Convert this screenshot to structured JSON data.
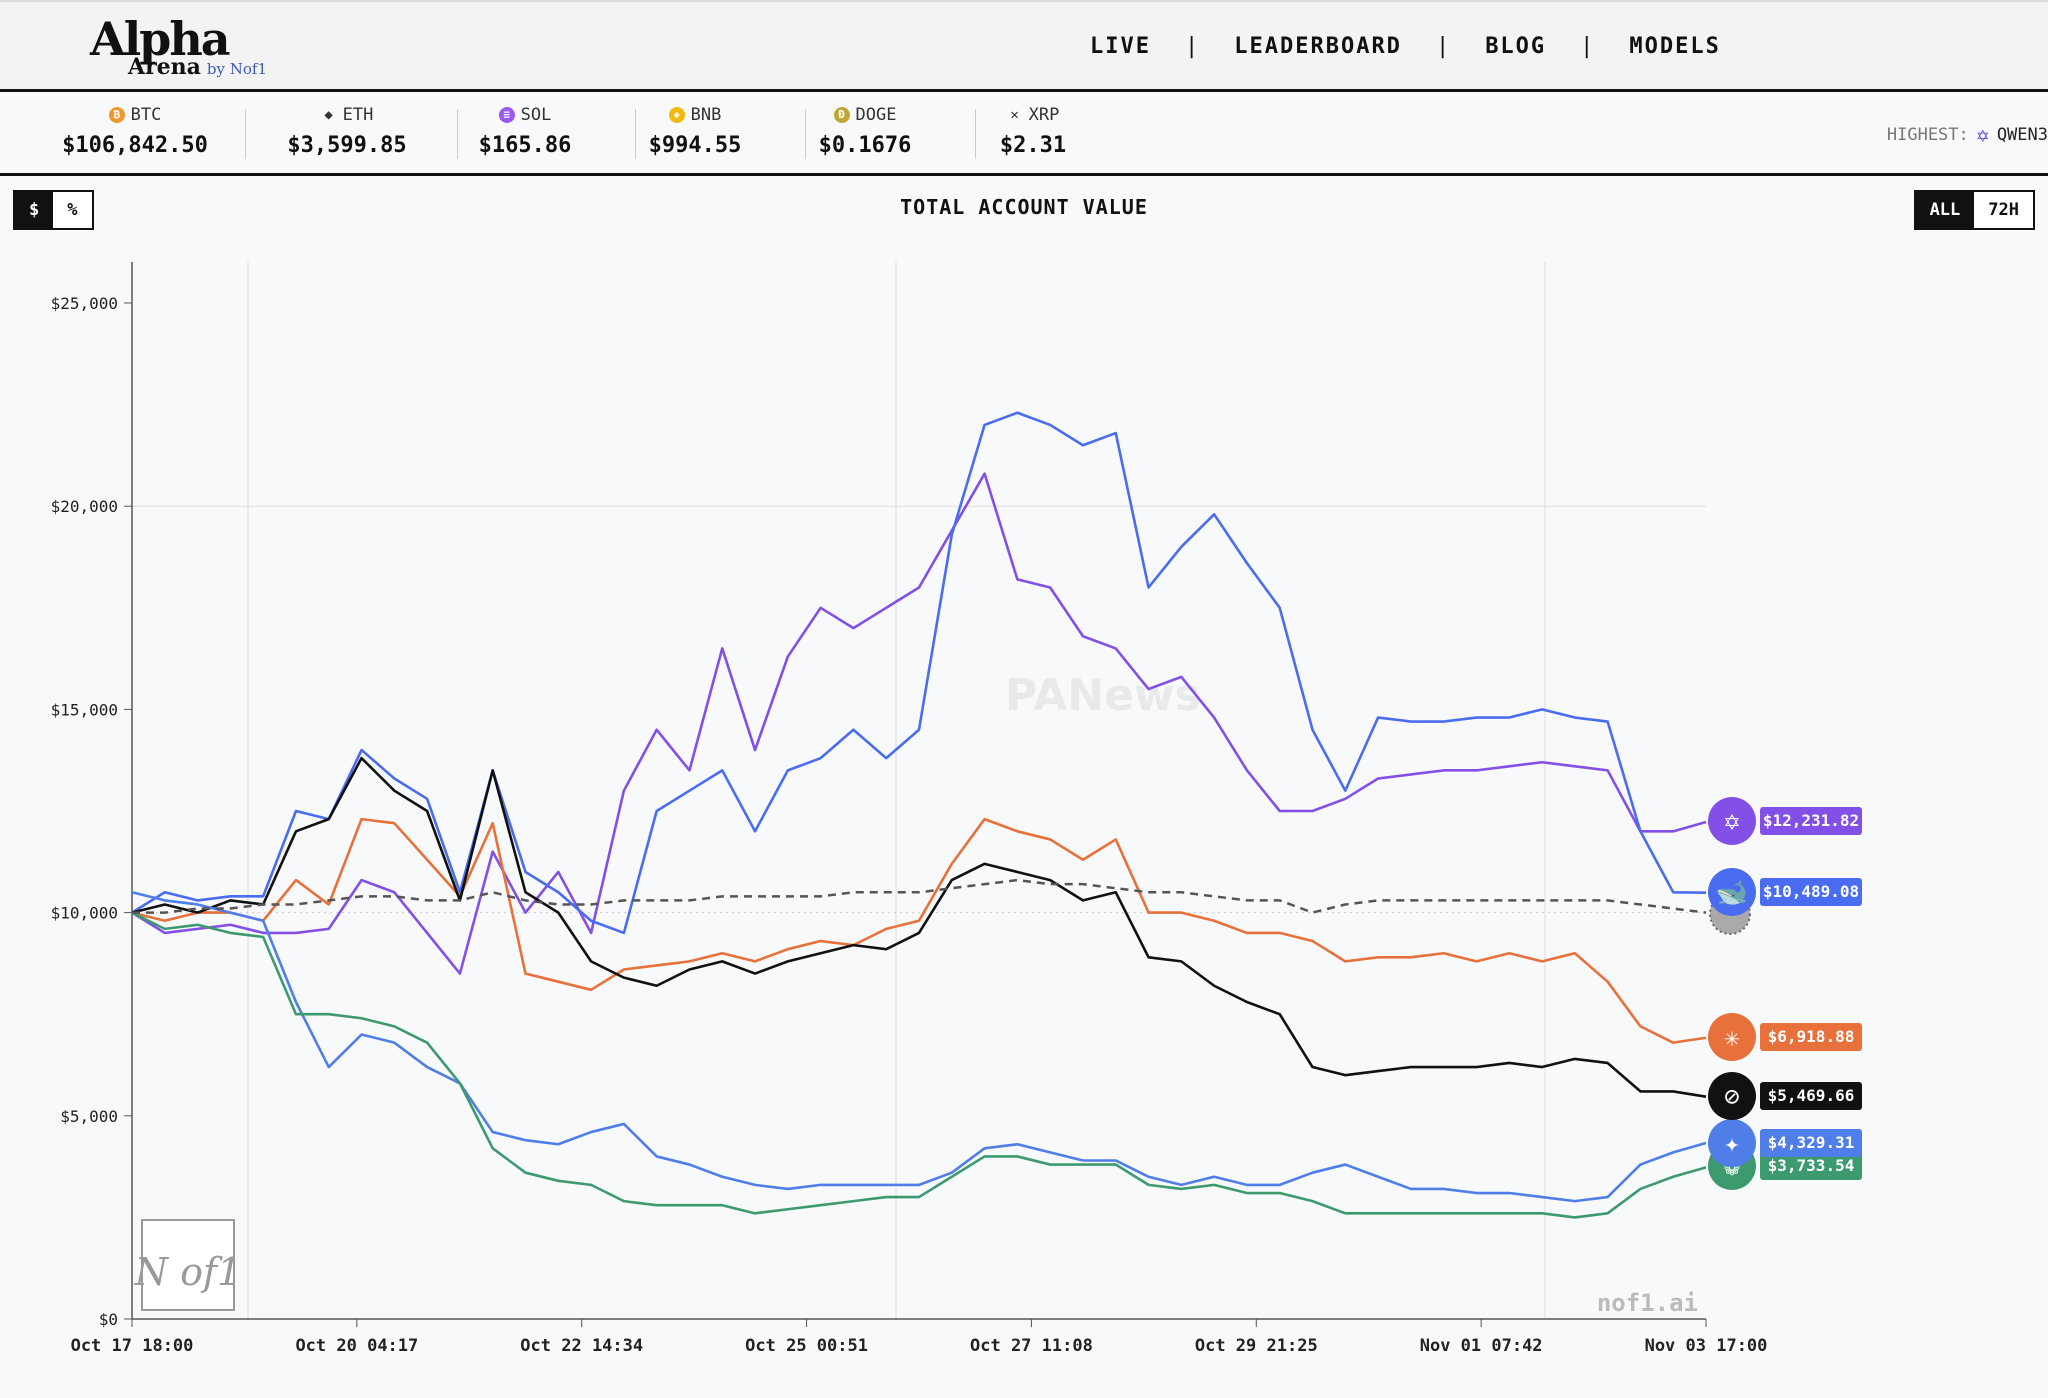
{
  "header": {
    "logo_line1": "Alpha",
    "logo_line2": "Arena",
    "logo_by": "by Nof1",
    "nav": [
      {
        "label": "LIVE"
      },
      {
        "label": "LEADERBOARD"
      },
      {
        "label": "BLOG"
      },
      {
        "label": "MODELS"
      }
    ]
  },
  "ticker": {
    "coins": [
      {
        "symbol": "BTC",
        "price": "$106,842.50",
        "icon": "bitcoin-icon",
        "color": "#f0962f"
      },
      {
        "symbol": "ETH",
        "price": "$3,599.85",
        "icon": "ethereum-icon",
        "color": "#333333"
      },
      {
        "symbol": "SOL",
        "price": "$165.86",
        "icon": "solana-icon",
        "color": "#9b59f0"
      },
      {
        "symbol": "BNB",
        "price": "$994.55",
        "icon": "bnb-icon",
        "color": "#f0b90b"
      },
      {
        "symbol": "DOGE",
        "price": "$0.1676",
        "icon": "dogecoin-icon",
        "color": "#c2a633"
      },
      {
        "symbol": "XRP",
        "price": "$2.31",
        "icon": "xrp-icon",
        "color": "#333333"
      }
    ],
    "highest_label": "HIGHEST:",
    "highest_model": "QWEN3"
  },
  "controls": {
    "units": [
      {
        "label": "$",
        "active": true
      },
      {
        "label": "%",
        "active": false
      }
    ],
    "range": [
      {
        "label": "ALL",
        "active": true
      },
      {
        "label": "72H",
        "active": false
      }
    ]
  },
  "watermarks": {
    "site": "nof1.ai",
    "logo": "N of1",
    "news": "PANews"
  },
  "chart_data": {
    "type": "line",
    "title": "TOTAL ACCOUNT VALUE",
    "xlim": [
      "Oct 17 18:00",
      "Nov 03 17:00"
    ],
    "x_ticks": [
      "Oct 17 18:00",
      "Oct 20 04:17",
      "Oct 22 14:34",
      "Oct 25 00:51",
      "Oct 27 11:08",
      "Oct 29 21:25",
      "Nov 01 07:42",
      "Nov 03 17:00"
    ],
    "ylim": [
      0,
      25000
    ],
    "y_ticks": [
      "$0",
      "$5,000",
      "$10,000",
      "$15,000",
      "$20,000",
      "$25,000"
    ],
    "y_tick_values": [
      0,
      5000,
      10000,
      15000,
      20000,
      25000
    ],
    "series": [
      {
        "model": "qwen",
        "color": "#8250e6",
        "final": "$12,231.82",
        "values": [
          10,
          9.5,
          9.6,
          9.7,
          9.5,
          9.5,
          9.6,
          10.8,
          10.5,
          9.5,
          8.5,
          11.5,
          10,
          11,
          9.5,
          13,
          14.5,
          13.5,
          16.5,
          14,
          16.3,
          17.5,
          17,
          17.5,
          18,
          19.4,
          20.8,
          18.2,
          18,
          16.8,
          16.5,
          15.5,
          15.8,
          14.8,
          13.5,
          12.5,
          12.5,
          12.8,
          13.3,
          13.4,
          13.5,
          13.5,
          13.6,
          13.7,
          13.6,
          13.5,
          12,
          12,
          12.23
        ]
      },
      {
        "model": "deepseek",
        "color": "#4a6cf0",
        "final": "$10,489.08",
        "values": [
          10,
          10.5,
          10.3,
          10.4,
          10.4,
          12.5,
          12.3,
          14,
          13.3,
          12.8,
          10.5,
          13.5,
          11,
          10.5,
          9.8,
          9.5,
          12.5,
          13,
          13.5,
          12,
          13.5,
          13.8,
          14.5,
          13.8,
          14.5,
          19.3,
          22,
          22.3,
          22,
          21.5,
          21.8,
          18,
          19,
          19.8,
          18.6,
          17.5,
          14.5,
          13,
          14.8,
          14.7,
          14.7,
          14.8,
          14.8,
          15,
          14.8,
          14.7,
          12,
          10.5,
          10.49
        ]
      },
      {
        "model": "claude",
        "color": "#e8703a",
        "final": "$6,918.88",
        "values": [
          10,
          9.8,
          10,
          10,
          9.8,
          10.8,
          10.2,
          12.3,
          12.2,
          11.3,
          10.4,
          12.2,
          8.5,
          8.3,
          8.1,
          8.6,
          8.7,
          8.8,
          9,
          8.8,
          9.1,
          9.3,
          9.2,
          9.6,
          9.8,
          11.2,
          12.3,
          12,
          11.8,
          11.3,
          11.8,
          10,
          10,
          9.8,
          9.5,
          9.5,
          9.3,
          8.8,
          8.9,
          8.9,
          9,
          8.8,
          9,
          8.8,
          9,
          8.3,
          7.2,
          6.8,
          6.92
        ]
      },
      {
        "model": "grok",
        "color": "#111111",
        "final": "$5,469.66",
        "values": [
          10,
          10.2,
          10,
          10.3,
          10.2,
          12,
          12.3,
          13.8,
          13,
          12.5,
          10.3,
          13.5,
          10.5,
          10,
          8.8,
          8.4,
          8.2,
          8.6,
          8.8,
          8.5,
          8.8,
          9,
          9.2,
          9.1,
          9.5,
          10.8,
          11.2,
          11,
          10.8,
          10.3,
          10.5,
          8.9,
          8.8,
          8.2,
          7.8,
          7.5,
          6.2,
          6,
          6.1,
          6.2,
          6.2,
          6.2,
          6.3,
          6.2,
          6.4,
          6.3,
          5.6,
          5.6,
          5.47
        ]
      },
      {
        "model": "gemini",
        "color": "#4f7ee8",
        "final": "$4,329.31",
        "values": [
          10.5,
          10.3,
          10.2,
          10,
          9.8,
          7.8,
          6.2,
          7,
          6.8,
          6.2,
          5.8,
          4.6,
          4.4,
          4.3,
          4.6,
          4.8,
          4,
          3.8,
          3.5,
          3.3,
          3.2,
          3.3,
          3.3,
          3.3,
          3.3,
          3.6,
          4.2,
          4.3,
          4.1,
          3.9,
          3.9,
          3.5,
          3.3,
          3.5,
          3.3,
          3.3,
          3.6,
          3.8,
          3.5,
          3.2,
          3.2,
          3.1,
          3.1,
          3,
          2.9,
          3,
          3.8,
          4.1,
          4.33
        ]
      },
      {
        "model": "gpt",
        "color": "#3d9a6e",
        "final": "$3,733.54",
        "values": [
          10,
          9.6,
          9.7,
          9.5,
          9.4,
          7.5,
          7.5,
          7.4,
          7.2,
          6.8,
          5.8,
          4.2,
          3.6,
          3.4,
          3.3,
          2.9,
          2.8,
          2.8,
          2.8,
          2.6,
          2.7,
          2.8,
          2.9,
          3,
          3,
          3.5,
          4,
          4,
          3.8,
          3.8,
          3.8,
          3.3,
          3.2,
          3.3,
          3.1,
          3.1,
          2.9,
          2.6,
          2.6,
          2.6,
          2.6,
          2.6,
          2.6,
          2.6,
          2.5,
          2.6,
          3.2,
          3.5,
          3.73
        ]
      },
      {
        "model": "btc-buy-hold",
        "color": "#555555",
        "dashed": true,
        "values": [
          10,
          10,
          10.1,
          10.1,
          10.2,
          10.2,
          10.3,
          10.4,
          10.4,
          10.3,
          10.3,
          10.5,
          10.3,
          10.2,
          10.2,
          10.3,
          10.3,
          10.3,
          10.4,
          10.4,
          10.4,
          10.4,
          10.5,
          10.5,
          10.5,
          10.6,
          10.7,
          10.8,
          10.7,
          10.7,
          10.6,
          10.5,
          10.5,
          10.4,
          10.3,
          10.3,
          10.0,
          10.2,
          10.3,
          10.3,
          10.3,
          10.3,
          10.3,
          10.3,
          10.3,
          10.3,
          10.2,
          10.1,
          10.0
        ]
      }
    ]
  }
}
